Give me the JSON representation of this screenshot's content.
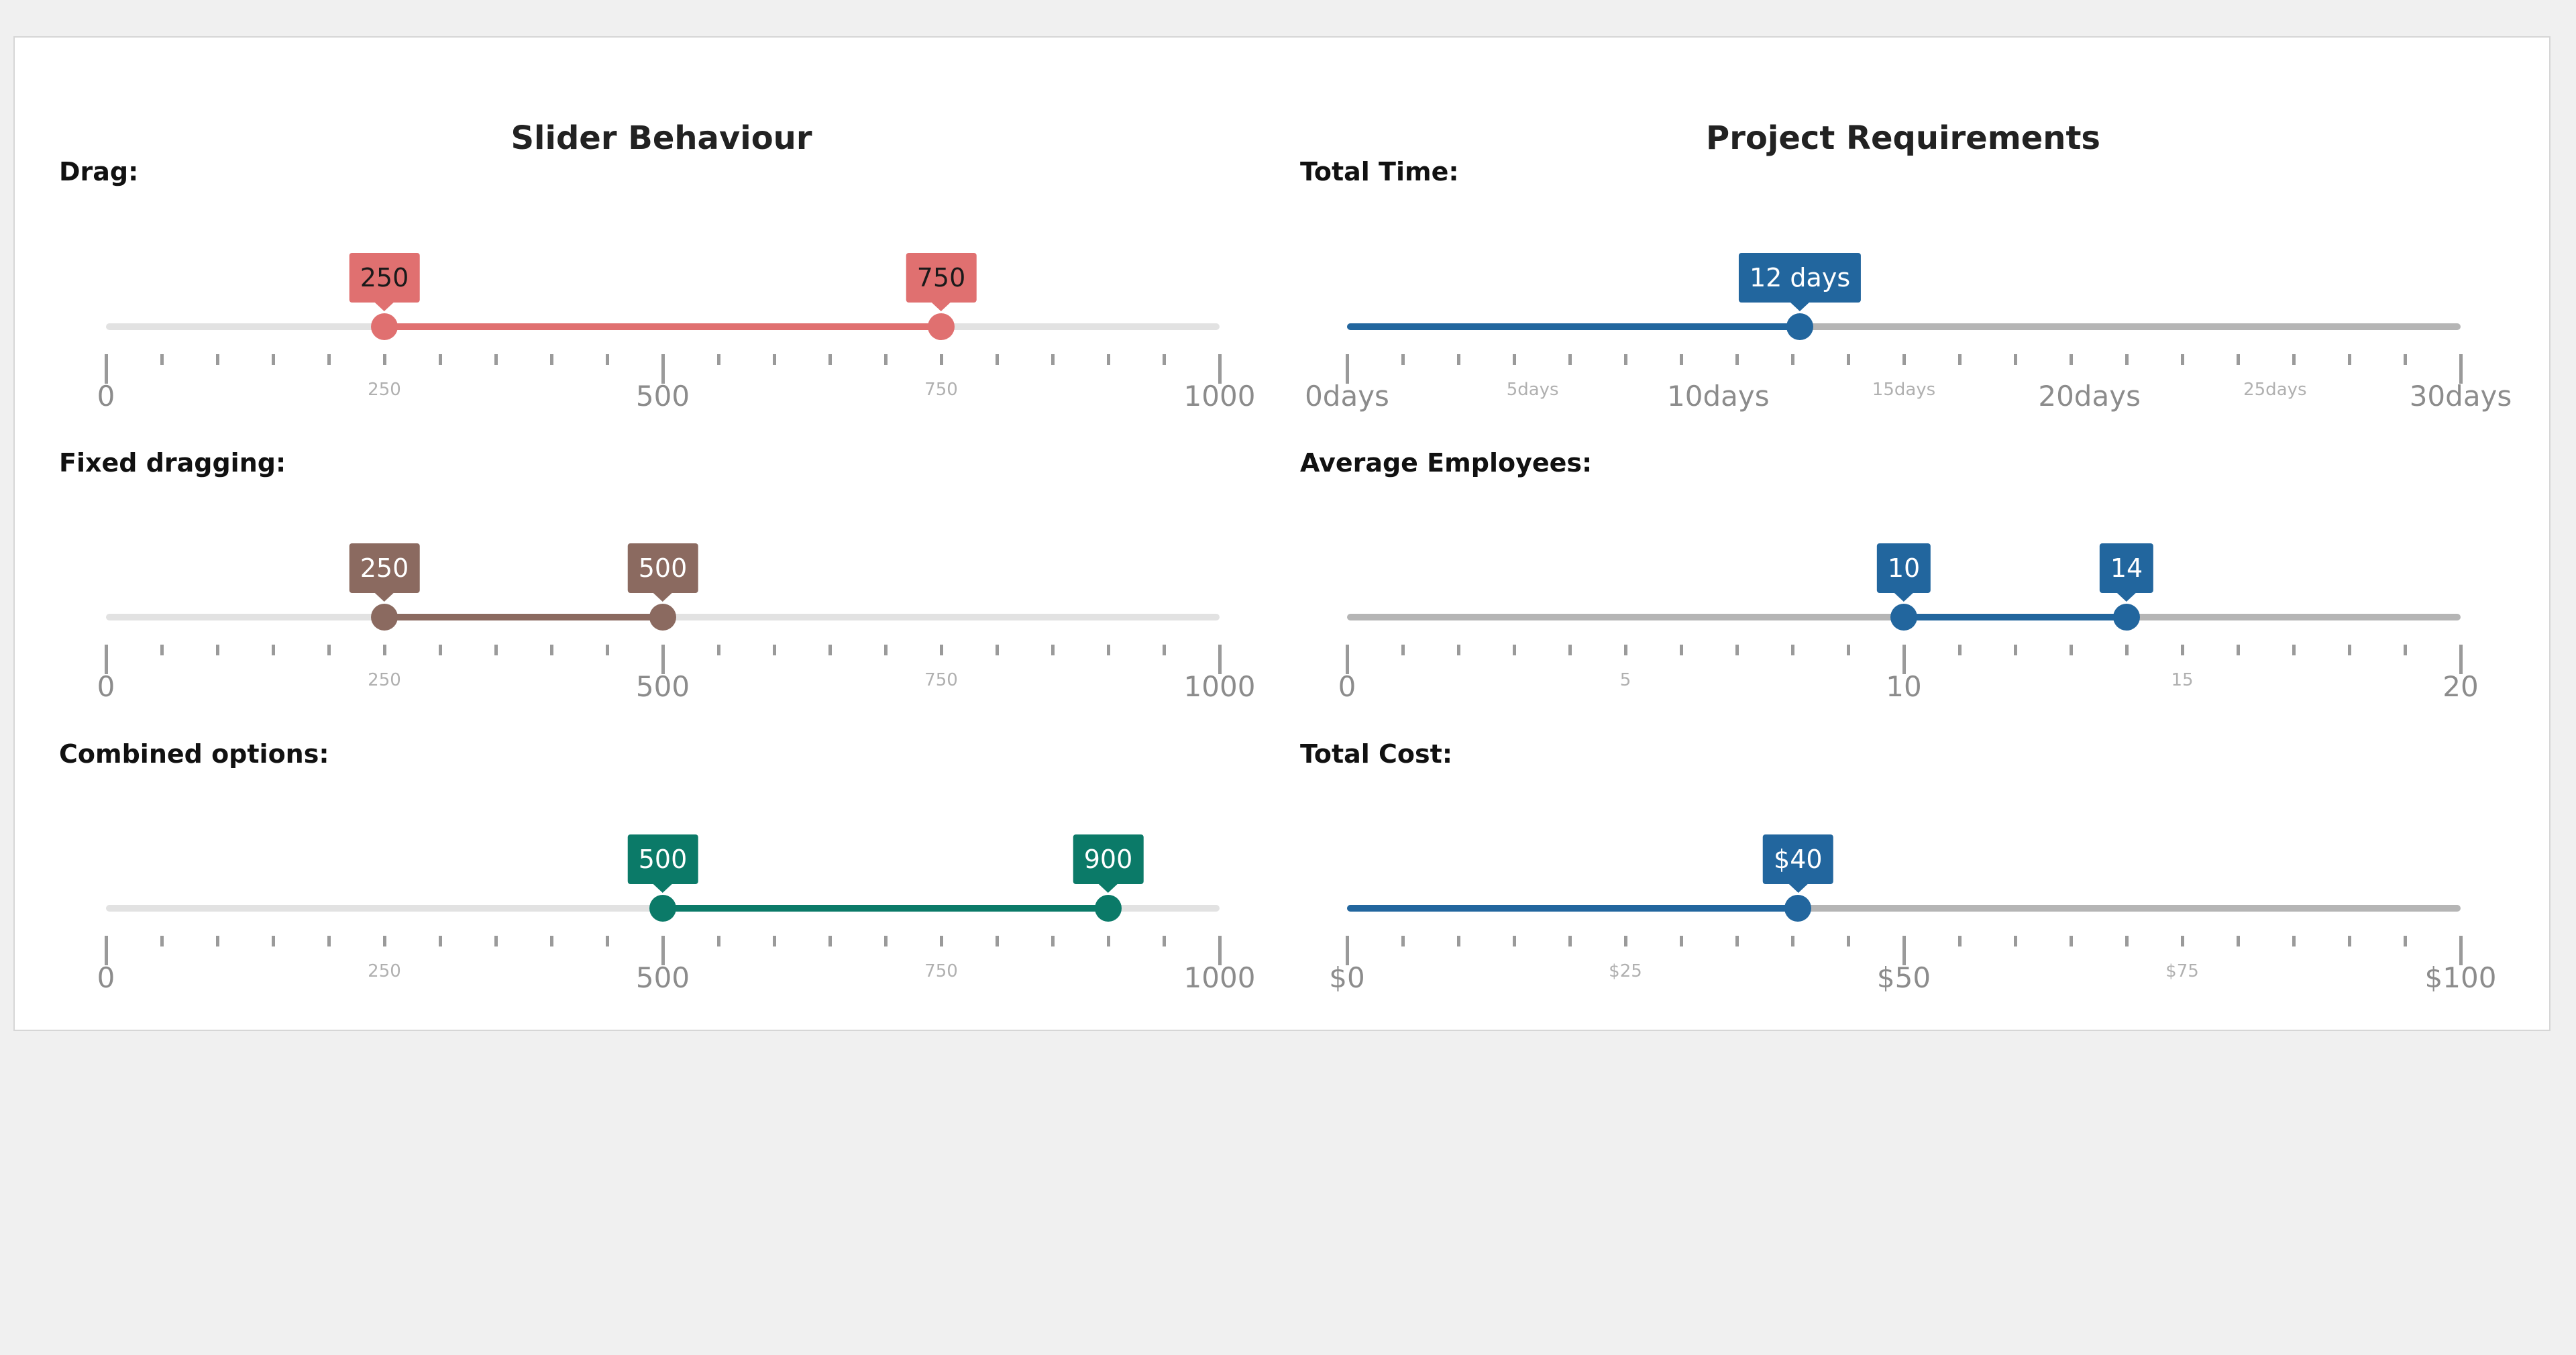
{
  "left_panel": {
    "title": "Slider Behaviour",
    "sliders": [
      {
        "label": "Drag:",
        "min": 0,
        "max": 1000,
        "step_ticks": 50,
        "values": [
          250,
          750
        ],
        "tooltips": [
          "250",
          "750"
        ],
        "major_ticks": [
          "0",
          "500",
          "1000"
        ],
        "mid_ticks": [
          "250",
          "750"
        ],
        "track_color": "#e2e2e2",
        "accent_color": "#e07070",
        "tooltip_text_color": "#1a1a1a"
      },
      {
        "label": "Fixed dragging:",
        "min": 0,
        "max": 1000,
        "step_ticks": 50,
        "values": [
          250,
          500
        ],
        "tooltips": [
          "250",
          "500"
        ],
        "major_ticks": [
          "0",
          "500",
          "1000"
        ],
        "mid_ticks": [
          "250",
          "750"
        ],
        "track_color": "#e2e2e2",
        "accent_color": "#8b6a60",
        "tooltip_text_color": "#ffffff"
      },
      {
        "label": "Combined options:",
        "min": 0,
        "max": 1000,
        "step_ticks": 50,
        "values": [
          500,
          900
        ],
        "tooltips": [
          "500",
          "900"
        ],
        "major_ticks": [
          "0",
          "500",
          "1000"
        ],
        "mid_ticks": [
          "250",
          "750"
        ],
        "track_color": "#e2e2e2",
        "accent_color": "#0b7a68",
        "tooltip_text_color": "#ffffff"
      }
    ]
  },
  "right_panel": {
    "title": "Project Requirements",
    "sliders": [
      {
        "label": "Total Time:",
        "min": 0,
        "max": 30,
        "step_ticks": 1.5,
        "values": [
          12.2
        ],
        "fill_from_min": true,
        "tooltips": [
          "12 days"
        ],
        "major_ticks": [
          "0days",
          "10days",
          "20days",
          "30days"
        ],
        "mid_ticks": [
          "5days",
          "15days",
          "25days"
        ],
        "track_color": "#b5b5b5",
        "accent_color": "#22669e",
        "tooltip_text_color": "#ffffff"
      },
      {
        "label": "Average Employees:",
        "min": 0,
        "max": 20,
        "step_ticks": 1,
        "values": [
          10,
          14
        ],
        "tooltips": [
          "10",
          "14"
        ],
        "major_ticks": [
          "0",
          "10",
          "20"
        ],
        "mid_ticks": [
          "5",
          "15"
        ],
        "track_color": "#b5b5b5",
        "accent_color": "#22669e",
        "tooltip_text_color": "#ffffff"
      },
      {
        "label": "Total Cost:",
        "min": 0,
        "max": 100,
        "step_ticks": 5,
        "values": [
          40.5
        ],
        "fill_from_min": true,
        "tooltips": [
          "$40"
        ],
        "major_ticks": [
          "$0",
          "$50",
          "$100"
        ],
        "mid_ticks": [
          "$25",
          "$75"
        ],
        "track_color": "#b5b5b5",
        "accent_color": "#22669e",
        "tooltip_text_color": "#ffffff"
      }
    ]
  }
}
